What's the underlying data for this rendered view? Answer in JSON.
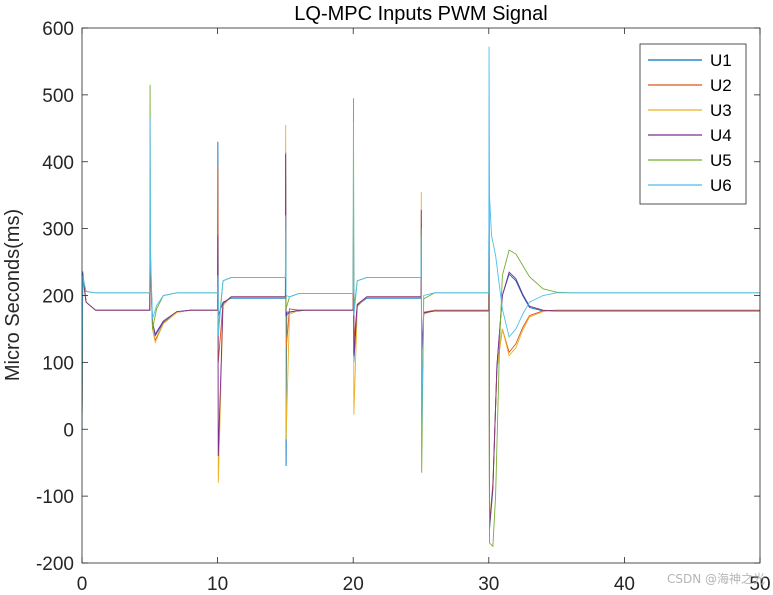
{
  "chart_data": {
    "type": "line",
    "title": "LQ-MPC Inputs PWM Signal",
    "xlabel": "",
    "ylabel": "Micro Seconds(ms)",
    "xlim": [
      0,
      50
    ],
    "ylim": [
      -200,
      600
    ],
    "xticks": [
      "0",
      "10",
      "20",
      "30",
      "40",
      "50"
    ],
    "yticks": [
      "-200",
      "-100",
      "0",
      "100",
      "200",
      "300",
      "400",
      "500",
      "600"
    ],
    "grid": false,
    "legend_position": "top-right",
    "series": [
      {
        "name": "U1",
        "color": "#0072BD",
        "points": [
          [
            0,
            0
          ],
          [
            0.05,
            236
          ],
          [
            0.3,
            190
          ],
          [
            1,
            178
          ],
          [
            5,
            178
          ],
          [
            5.02,
            297
          ],
          [
            5.05,
            240
          ],
          [
            5.2,
            160
          ],
          [
            5.4,
            140
          ],
          [
            6,
            160
          ],
          [
            7,
            175
          ],
          [
            8,
            178
          ],
          [
            10,
            178
          ],
          [
            10.02,
            430
          ],
          [
            10.05,
            170
          ],
          [
            10.4,
            190
          ],
          [
            11,
            196
          ],
          [
            15,
            196
          ],
          [
            15.02,
            415
          ],
          [
            15.05,
            -55
          ],
          [
            15.1,
            175
          ],
          [
            15.6,
            176
          ],
          [
            16.5,
            178
          ],
          [
            20,
            178
          ],
          [
            20.02,
            340
          ],
          [
            20.05,
            100
          ],
          [
            20.3,
            185
          ],
          [
            21,
            196
          ],
          [
            25,
            196
          ],
          [
            25.02,
            298
          ],
          [
            25.05,
            20
          ],
          [
            25.2,
            174
          ],
          [
            26,
            177
          ],
          [
            30,
            177
          ],
          [
            30.02,
            395
          ],
          [
            30.05,
            -150
          ],
          [
            30.3,
            -90
          ],
          [
            30.6,
            95
          ],
          [
            31,
            200
          ],
          [
            31.5,
            232
          ],
          [
            32,
            222
          ],
          [
            32.5,
            200
          ],
          [
            33,
            182
          ],
          [
            34,
            177
          ],
          [
            35,
            177
          ],
          [
            40,
            177
          ],
          [
            50,
            177
          ],
          [
            50,
            0
          ]
        ]
      },
      {
        "name": "U2",
        "color": "#D95319",
        "points": [
          [
            0,
            0
          ],
          [
            0.05,
            228
          ],
          [
            0.3,
            190
          ],
          [
            1,
            178
          ],
          [
            5,
            178
          ],
          [
            5.02,
            292
          ],
          [
            5.05,
            245
          ],
          [
            5.2,
            150
          ],
          [
            5.4,
            133
          ],
          [
            6,
            158
          ],
          [
            7,
            175
          ],
          [
            8,
            178
          ],
          [
            10,
            178
          ],
          [
            10.02,
            395
          ],
          [
            10.05,
            100
          ],
          [
            10.4,
            188
          ],
          [
            11,
            198
          ],
          [
            15,
            198
          ],
          [
            15.02,
            265
          ],
          [
            15.05,
            120
          ],
          [
            15.3,
            180
          ],
          [
            16,
            178
          ],
          [
            20,
            178
          ],
          [
            20.02,
            320
          ],
          [
            20.05,
            130
          ],
          [
            20.3,
            187
          ],
          [
            21,
            198
          ],
          [
            25,
            198
          ],
          [
            25.02,
            290
          ],
          [
            25.05,
            60
          ],
          [
            25.2,
            175
          ],
          [
            26,
            178
          ],
          [
            30,
            178
          ],
          [
            30.02,
            400
          ],
          [
            30.05,
            -145
          ],
          [
            30.3,
            -85
          ],
          [
            30.6,
            90
          ],
          [
            31,
            150
          ],
          [
            31.5,
            115
          ],
          [
            32,
            128
          ],
          [
            32.5,
            152
          ],
          [
            33,
            170
          ],
          [
            34,
            177
          ],
          [
            35,
            178
          ],
          [
            40,
            178
          ],
          [
            50,
            178
          ],
          [
            50,
            0
          ]
        ]
      },
      {
        "name": "U3",
        "color": "#EDB120",
        "points": [
          [
            0,
            0
          ],
          [
            0.05,
            230
          ],
          [
            0.3,
            190
          ],
          [
            1,
            178
          ],
          [
            5,
            178
          ],
          [
            5.02,
            292
          ],
          [
            5.05,
            245
          ],
          [
            5.2,
            150
          ],
          [
            5.4,
            130
          ],
          [
            6,
            158
          ],
          [
            7,
            175
          ],
          [
            8,
            178
          ],
          [
            10,
            178
          ],
          [
            10.02,
            240
          ],
          [
            10.05,
            -80
          ],
          [
            10.4,
            185
          ],
          [
            11,
            198
          ],
          [
            15,
            198
          ],
          [
            15.02,
            455
          ],
          [
            15.05,
            -15
          ],
          [
            15.3,
            172
          ],
          [
            16,
            178
          ],
          [
            20,
            178
          ],
          [
            20.02,
            300
          ],
          [
            20.05,
            22
          ],
          [
            20.3,
            183
          ],
          [
            21,
            198
          ],
          [
            25,
            198
          ],
          [
            25.02,
            355
          ],
          [
            25.05,
            90
          ],
          [
            25.2,
            172
          ],
          [
            26,
            178
          ],
          [
            30,
            178
          ],
          [
            30.02,
            390
          ],
          [
            30.05,
            -140
          ],
          [
            30.3,
            -80
          ],
          [
            30.6,
            90
          ],
          [
            31,
            150
          ],
          [
            31.5,
            110
          ],
          [
            32,
            122
          ],
          [
            32.5,
            148
          ],
          [
            33,
            168
          ],
          [
            34,
            176
          ],
          [
            35,
            178
          ],
          [
            40,
            178
          ],
          [
            50,
            178
          ],
          [
            50,
            0
          ]
        ]
      },
      {
        "name": "U4",
        "color": "#7E2F8E",
        "points": [
          [
            0,
            0
          ],
          [
            0.05,
            232
          ],
          [
            0.3,
            190
          ],
          [
            1,
            178
          ],
          [
            5,
            178
          ],
          [
            5.02,
            290
          ],
          [
            5.05,
            240
          ],
          [
            5.2,
            160
          ],
          [
            5.4,
            142
          ],
          [
            6,
            162
          ],
          [
            7,
            176
          ],
          [
            8,
            178
          ],
          [
            10,
            178
          ],
          [
            10.02,
            290
          ],
          [
            10.05,
            -40
          ],
          [
            10.4,
            188
          ],
          [
            11,
            198
          ],
          [
            15,
            198
          ],
          [
            15.02,
            412
          ],
          [
            15.05,
            170
          ],
          [
            15.3,
            175
          ],
          [
            16,
            178
          ],
          [
            20,
            178
          ],
          [
            20.02,
            330
          ],
          [
            20.05,
            110
          ],
          [
            20.3,
            186
          ],
          [
            21,
            198
          ],
          [
            25,
            198
          ],
          [
            25.02,
            328
          ],
          [
            25.05,
            120
          ],
          [
            25.2,
            174
          ],
          [
            26,
            177
          ],
          [
            30,
            177
          ],
          [
            30.02,
            400
          ],
          [
            30.05,
            -145
          ],
          [
            30.3,
            -85
          ],
          [
            30.6,
            95
          ],
          [
            31,
            200
          ],
          [
            31.5,
            235
          ],
          [
            32,
            225
          ],
          [
            32.5,
            202
          ],
          [
            33,
            184
          ],
          [
            34,
            178
          ],
          [
            35,
            177
          ],
          [
            40,
            177
          ],
          [
            50,
            177
          ],
          [
            50,
            0
          ]
        ]
      },
      {
        "name": "U5",
        "color": "#77AC30",
        "points": [
          [
            0,
            0
          ],
          [
            0.05,
            225
          ],
          [
            0.3,
            206
          ],
          [
            1,
            204
          ],
          [
            5,
            204
          ],
          [
            5.02,
            515
          ],
          [
            5.05,
            270
          ],
          [
            5.2,
            150
          ],
          [
            5.5,
            180
          ],
          [
            6,
            200
          ],
          [
            7,
            204
          ],
          [
            10,
            204
          ],
          [
            10.02,
            200
          ],
          [
            10.05,
            150
          ],
          [
            10.4,
            222
          ],
          [
            11,
            227
          ],
          [
            15,
            227
          ],
          [
            15.02,
            300
          ],
          [
            15.05,
            180
          ],
          [
            15.3,
            198
          ],
          [
            16,
            203
          ],
          [
            20,
            203
          ],
          [
            20.02,
            495
          ],
          [
            20.05,
            180
          ],
          [
            20.3,
            222
          ],
          [
            21,
            227
          ],
          [
            25,
            227
          ],
          [
            25.02,
            300
          ],
          [
            25.05,
            -65
          ],
          [
            25.2,
            195
          ],
          [
            26,
            204
          ],
          [
            30,
            204
          ],
          [
            30.02,
            340
          ],
          [
            30.05,
            -170
          ],
          [
            30.3,
            -175
          ],
          [
            30.5,
            -100
          ],
          [
            30.8,
            130
          ],
          [
            31,
            230
          ],
          [
            31.5,
            268
          ],
          [
            32,
            262
          ],
          [
            32.5,
            245
          ],
          [
            33,
            228
          ],
          [
            34,
            210
          ],
          [
            35,
            205
          ],
          [
            36,
            204
          ],
          [
            40,
            204
          ],
          [
            50,
            204
          ],
          [
            50,
            0
          ]
        ]
      },
      {
        "name": "U6",
        "color": "#4DBEEE",
        "points": [
          [
            0,
            0
          ],
          [
            0.05,
            230
          ],
          [
            0.3,
            206
          ],
          [
            1,
            204
          ],
          [
            5,
            204
          ],
          [
            5.02,
            465
          ],
          [
            5.05,
            260
          ],
          [
            5.2,
            165
          ],
          [
            5.5,
            185
          ],
          [
            6,
            200
          ],
          [
            7,
            204
          ],
          [
            10,
            204
          ],
          [
            10.02,
            230
          ],
          [
            10.05,
            140
          ],
          [
            10.4,
            222
          ],
          [
            11,
            227
          ],
          [
            15,
            227
          ],
          [
            15.02,
            320
          ],
          [
            15.05,
            200
          ],
          [
            15.3,
            198
          ],
          [
            16,
            203
          ],
          [
            20,
            203
          ],
          [
            20.02,
            460
          ],
          [
            20.05,
            170
          ],
          [
            20.3,
            222
          ],
          [
            21,
            227
          ],
          [
            25,
            227
          ],
          [
            25.02,
            290
          ],
          [
            25.05,
            0
          ],
          [
            25.2,
            200
          ],
          [
            26,
            204
          ],
          [
            30,
            204
          ],
          [
            30.02,
            572
          ],
          [
            30.05,
            350
          ],
          [
            30.2,
            290
          ],
          [
            30.5,
            260
          ],
          [
            31,
            180
          ],
          [
            31.5,
            138
          ],
          [
            32,
            150
          ],
          [
            32.5,
            172
          ],
          [
            33,
            190
          ],
          [
            34,
            200
          ],
          [
            35,
            204
          ],
          [
            40,
            204
          ],
          [
            50,
            204
          ],
          [
            50,
            0
          ]
        ]
      }
    ]
  },
  "watermark": "CSDN @海神之光"
}
